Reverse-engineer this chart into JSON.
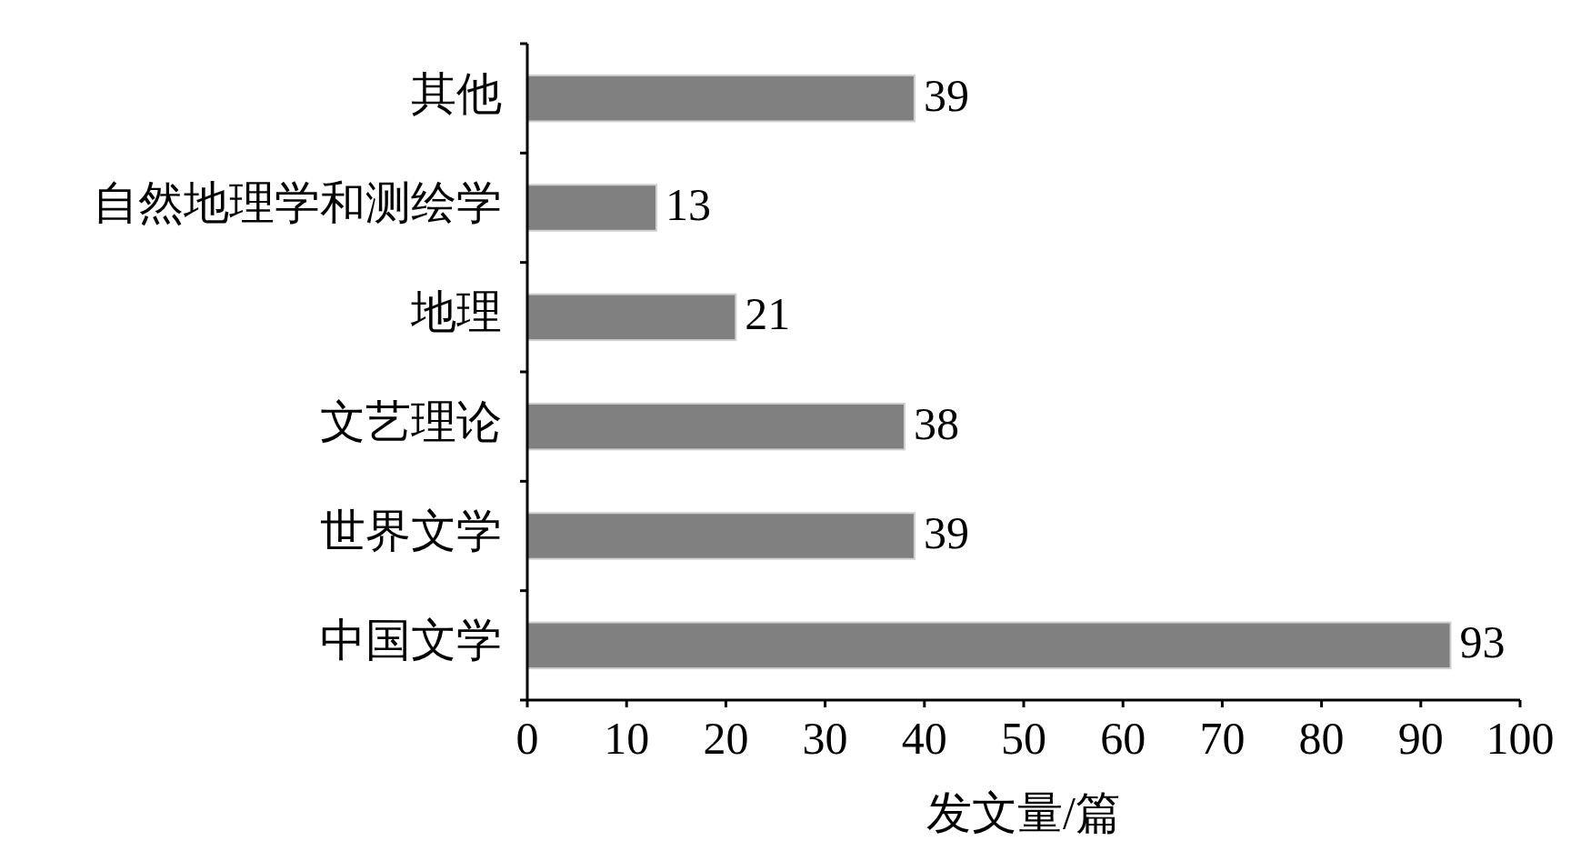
{
  "chart_data": {
    "type": "bar",
    "orientation": "horizontal",
    "categories": [
      "其他",
      "自然地理学和测绘学",
      "地理",
      "文艺理论",
      "世界文学",
      "中国文学"
    ],
    "values": [
      39,
      13,
      21,
      38,
      39,
      93
    ],
    "color": "#808080",
    "xlim": [
      0,
      100
    ],
    "xticks": [
      0,
      10,
      20,
      30,
      40,
      50,
      60,
      70,
      80,
      90,
      100
    ],
    "xlabel": "发文量/篇",
    "data_labels": true
  }
}
